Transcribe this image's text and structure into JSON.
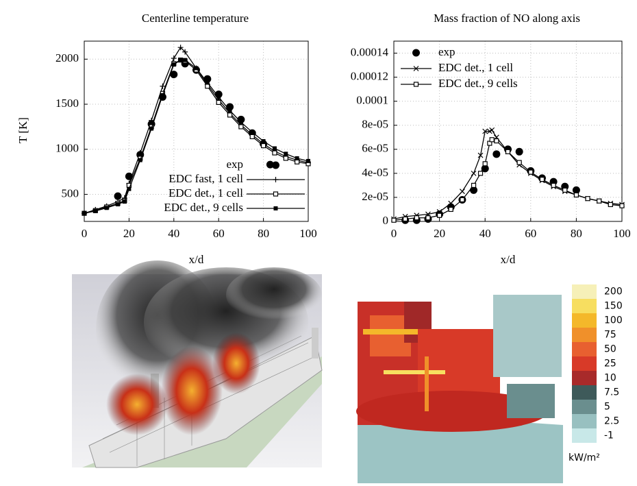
{
  "chart_data": [
    {
      "type": "line",
      "title": "Centerline temperature",
      "x_label": "x/d",
      "y_label": "T [K]",
      "xlim": [
        0,
        100
      ],
      "xticks": [
        0,
        20,
        40,
        60,
        80,
        100
      ],
      "ylim": [
        200,
        2200
      ],
      "yticks": [
        500,
        1000,
        1500,
        2000
      ],
      "grid": true,
      "legend": "lower right",
      "series": [
        {
          "name": "exp",
          "color": "#000000",
          "marker": "dot",
          "line": false,
          "x": [
            15,
            20,
            25,
            30,
            35,
            40,
            45,
            50,
            55,
            60,
            65,
            70,
            75,
            80,
            83
          ],
          "values": [
            480,
            700,
            940,
            1280,
            1580,
            1830,
            1950,
            1880,
            1780,
            1610,
            1470,
            1330,
            1180,
            1060,
            830
          ]
        },
        {
          "name": "EDC fast, 1 cell",
          "color": "#000000",
          "marker": "plus",
          "line": true,
          "x": [
            0,
            5,
            10,
            15,
            18,
            20,
            25,
            30,
            35,
            40,
            43,
            45,
            50,
            55,
            60,
            65,
            70,
            75,
            80,
            85,
            90,
            95,
            100
          ],
          "values": [
            290,
            330,
            370,
            420,
            460,
            620,
            960,
            1320,
            1700,
            2010,
            2130,
            2080,
            1900,
            1720,
            1550,
            1400,
            1270,
            1160,
            1060,
            980,
            920,
            880,
            850
          ]
        },
        {
          "name": "EDC det., 1 cell",
          "color": "#000000",
          "marker": "square-open",
          "line": true,
          "x": [
            0,
            5,
            10,
            15,
            18,
            20,
            25,
            30,
            35,
            40,
            43,
            45,
            50,
            55,
            60,
            65,
            70,
            75,
            80,
            85,
            90,
            95,
            100
          ],
          "values": [
            290,
            320,
            360,
            400,
            430,
            600,
            900,
            1250,
            1620,
            1950,
            1990,
            1980,
            1880,
            1700,
            1520,
            1380,
            1250,
            1140,
            1040,
            960,
            900,
            860,
            840
          ]
        },
        {
          "name": "EDC det., 9 cells",
          "color": "#000000",
          "marker": "square-filled",
          "line": true,
          "x": [
            0,
            5,
            10,
            15,
            18,
            20,
            25,
            30,
            35,
            40,
            43,
            45,
            50,
            55,
            60,
            65,
            70,
            75,
            80,
            85,
            90,
            95,
            100
          ],
          "values": [
            290,
            315,
            350,
            390,
            420,
            560,
            880,
            1230,
            1600,
            1940,
            1990,
            1990,
            1900,
            1740,
            1580,
            1430,
            1300,
            1190,
            1090,
            1010,
            950,
            900,
            870
          ]
        }
      ]
    },
    {
      "type": "line",
      "title": "Mass fraction of NO along axis",
      "x_label": "x/d",
      "xlim": [
        0,
        100
      ],
      "xticks": [
        0,
        20,
        40,
        60,
        80,
        100
      ],
      "ylim": [
        0,
        0.00015
      ],
      "yticks": [
        0,
        {
          "value": 2e-05,
          "label": "2e-05"
        },
        {
          "value": 4e-05,
          "label": "4e-05"
        },
        {
          "value": 6e-05,
          "label": "6e-05"
        },
        {
          "value": 8e-05,
          "label": "8e-05"
        },
        0.0001,
        0.00012,
        0.00014
      ],
      "grid": true,
      "legend": "upper left",
      "series": [
        {
          "name": "exp",
          "color": "#000000",
          "marker": "dot",
          "line": false,
          "x": [
            5,
            10,
            15,
            20,
            25,
            30,
            35,
            40,
            45,
            50,
            55,
            60,
            65,
            70,
            75,
            80
          ],
          "values": [
            1e-06,
            1e-06,
            2e-06,
            6e-06,
            1.2e-05,
            1.8e-05,
            2.6e-05,
            4.4e-05,
            5.6e-05,
            6e-05,
            5.8e-05,
            4.2e-05,
            3.6e-05,
            3.3e-05,
            2.9e-05,
            2.6e-05
          ]
        },
        {
          "name": "EDC det., 1 cell",
          "color": "#000000",
          "marker": "cross",
          "line": true,
          "x": [
            0,
            5,
            10,
            15,
            20,
            25,
            30,
            35,
            38,
            40,
            42,
            43,
            45,
            50,
            55,
            60,
            65,
            70,
            75,
            80,
            85,
            90,
            95,
            100
          ],
          "values": [
            2e-06,
            4e-06,
            5e-06,
            6e-06,
            8e-06,
            1.5e-05,
            2.5e-05,
            4e-05,
            5.5e-05,
            7.5e-05,
            7.5e-05,
            7.6e-05,
            7e-05,
            5.8e-05,
            4.7e-05,
            4e-05,
            3.4e-05,
            2.9e-05,
            2.5e-05,
            2.2e-05,
            1.9e-05,
            1.7e-05,
            1.5e-05,
            1.4e-05
          ]
        },
        {
          "name": "EDC det., 9 cells",
          "color": "#000000",
          "marker": "square-open",
          "line": true,
          "x": [
            0,
            5,
            10,
            15,
            20,
            25,
            30,
            35,
            38,
            40,
            42,
            43,
            45,
            50,
            55,
            60,
            65,
            70,
            75,
            80,
            85,
            90,
            95,
            100
          ],
          "values": [
            1e-06,
            2e-06,
            3e-06,
            3e-06,
            5e-06,
            1e-05,
            1.8e-05,
            3e-05,
            4e-05,
            4.8e-05,
            6.5e-05,
            6.8e-05,
            6.7e-05,
            5.8e-05,
            4.9e-05,
            4.1e-05,
            3.5e-05,
            3e-05,
            2.6e-05,
            2.2e-05,
            1.9e-05,
            1.7e-05,
            1.4e-05,
            1.3e-05
          ]
        }
      ]
    }
  ],
  "colorbar": {
    "labels": [
      "200",
      "150",
      "100",
      "75",
      "50",
      "25",
      "10",
      "7.5",
      "5",
      "2.5",
      "-1"
    ],
    "colors": [
      "#f6f0b8",
      "#f7de60",
      "#f4b82a",
      "#f0902a",
      "#e86030",
      "#d83a28",
      "#a82a2a",
      "#3e5a5a",
      "#6a8e8e",
      "#98c0c0",
      "#c8e8e8"
    ],
    "unit": "kW/m²"
  }
}
